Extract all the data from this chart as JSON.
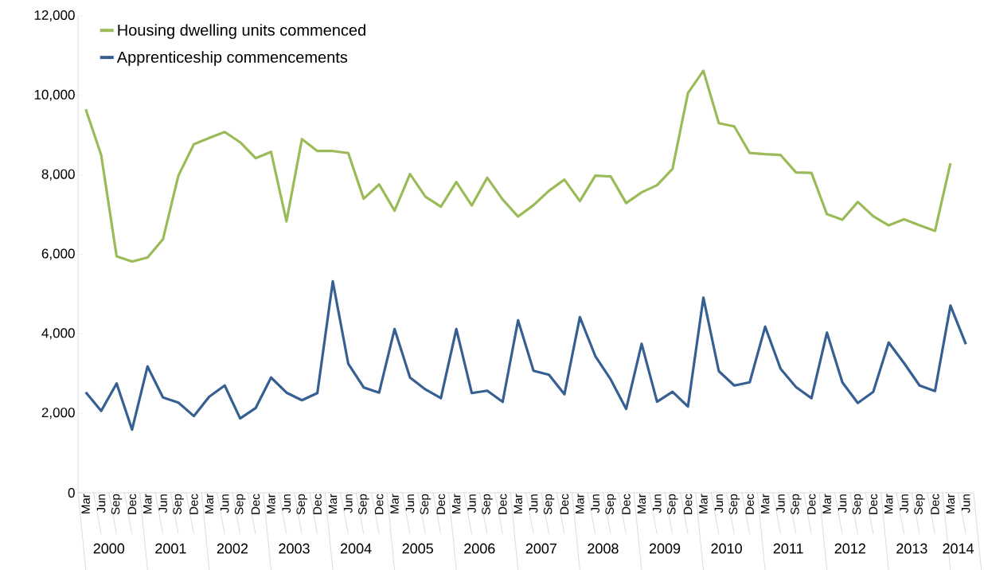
{
  "chart_data": {
    "type": "line",
    "categories": [
      "Mar",
      "Jun",
      "Sep",
      "Dec",
      "Mar",
      "Jun",
      "Sep",
      "Dec",
      "Mar",
      "Jun",
      "Sep",
      "Dec",
      "Mar",
      "Jun",
      "Sep",
      "Dec",
      "Mar",
      "Jun",
      "Sep",
      "Dec",
      "Mar",
      "Jun",
      "Sep",
      "Dec",
      "Mar",
      "Jun",
      "Sep",
      "Dec",
      "Mar",
      "Jun",
      "Sep",
      "Dec",
      "Mar",
      "Jun",
      "Sep",
      "Dec",
      "Mar",
      "Jun",
      "Sep",
      "Dec",
      "Mar",
      "Jun",
      "Sep",
      "Dec",
      "Mar",
      "Jun",
      "Sep",
      "Dec",
      "Mar",
      "Jun",
      "Sep",
      "Dec",
      "Mar",
      "Jun",
      "Sep",
      "Dec",
      "Mar",
      "Jun"
    ],
    "series": [
      {
        "name": "Housing dwelling units commenced",
        "color": "#9bbb59",
        "values": [
          9650,
          8500,
          5950,
          5820,
          5920,
          6380,
          7980,
          8770,
          8930,
          9080,
          8820,
          8420,
          8580,
          6830,
          8900,
          8600,
          8600,
          8550,
          7400,
          7760,
          7100,
          8020,
          7450,
          7200,
          7820,
          7230,
          7930,
          7380,
          6950,
          7240,
          7600,
          7880,
          7340,
          7980,
          7960,
          7290,
          7560,
          7740,
          8150,
          10060,
          10620,
          9300,
          9220,
          8550,
          8520,
          8500,
          8060,
          8050,
          7010,
          6870,
          7320,
          6960,
          6730,
          6880,
          6730,
          6590,
          8290,
          null
        ]
      },
      {
        "name": "Apprenticeship commencements",
        "color": "#376092",
        "values": [
          2530,
          2060,
          2750,
          1590,
          3180,
          2400,
          2270,
          1930,
          2420,
          2700,
          1870,
          2130,
          2900,
          2520,
          2330,
          2510,
          5320,
          3250,
          2650,
          2520,
          4120,
          2900,
          2600,
          2380,
          4120,
          2510,
          2570,
          2290,
          4340,
          3070,
          2970,
          2480,
          4420,
          3440,
          2850,
          2110,
          3750,
          2290,
          2540,
          2170,
          4910,
          3060,
          2700,
          2780,
          4180,
          3120,
          2660,
          2380,
          4030,
          2780,
          2260,
          2540,
          3780,
          3260,
          2700,
          2560,
          4710,
          3740
        ]
      }
    ],
    "ylim": [
      0,
      12000
    ],
    "yticks": [
      0,
      {
        "value": 2000,
        "label": "2,000"
      },
      {
        "value": 4000,
        "label": "4,000"
      },
      {
        "value": 6000,
        "label": "6,000"
      },
      {
        "value": 8000,
        "label": "8,000"
      },
      {
        "value": 10000,
        "label": "10,000"
      },
      {
        "value": 12000,
        "label": "12,000"
      }
    ],
    "annotations": [
      "2000",
      "2001",
      "2002",
      "2003",
      "2004",
      "2005",
      "2006",
      "2007",
      "2008",
      "2009",
      "2010",
      "2011",
      "2012",
      "2013",
      "2014"
    ],
    "legend": "top left",
    "marker": "none",
    "line_style": "solid",
    "grid": false
  }
}
